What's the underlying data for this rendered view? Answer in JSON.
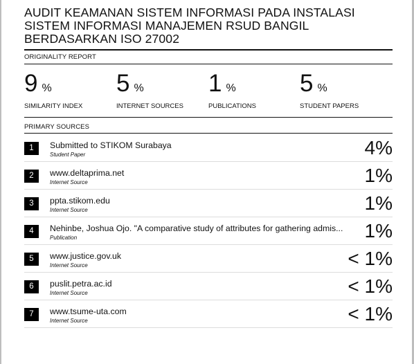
{
  "report": {
    "title": "AUDIT KEAMANAN SISTEM INFORMASI PADA INSTALASI SISTEM INFORMASI MANAJEMEN RSUD BANGIL BERDASARKAN ISO 27002",
    "originality_label": "ORIGINALITY REPORT",
    "primary_label": "PRIMARY SOURCES"
  },
  "stats": [
    {
      "value": "9",
      "unit": "%",
      "label": "SIMILARITY INDEX"
    },
    {
      "value": "5",
      "unit": "%",
      "label": "INTERNET SOURCES"
    },
    {
      "value": "1",
      "unit": "%",
      "label": "PUBLICATIONS"
    },
    {
      "value": "5",
      "unit": "%",
      "label": "STUDENT PAPERS"
    }
  ],
  "sources": [
    {
      "rank": "1",
      "name": "Submitted to STIKOM Surabaya",
      "type": "Student Paper",
      "percent": "4%"
    },
    {
      "rank": "2",
      "name": "www.deltaprima.net",
      "type": "Internet Source",
      "percent": "1%"
    },
    {
      "rank": "3",
      "name": "ppta.stikom.edu",
      "type": "Internet Source",
      "percent": "1%"
    },
    {
      "rank": "4",
      "name": "Nehinbe, Joshua Ojo. \"A comparative study of attributes for gathering admis...",
      "type": "Publication",
      "percent": "1%"
    },
    {
      "rank": "5",
      "name": "www.justice.gov.uk",
      "type": "Internet Source",
      "percent": "< 1%"
    },
    {
      "rank": "6",
      "name": "puslit.petra.ac.id",
      "type": "Internet Source",
      "percent": "< 1%"
    },
    {
      "rank": "7",
      "name": "www.tsume-uta.com",
      "type": "Internet Source",
      "percent": "< 1%"
    }
  ]
}
